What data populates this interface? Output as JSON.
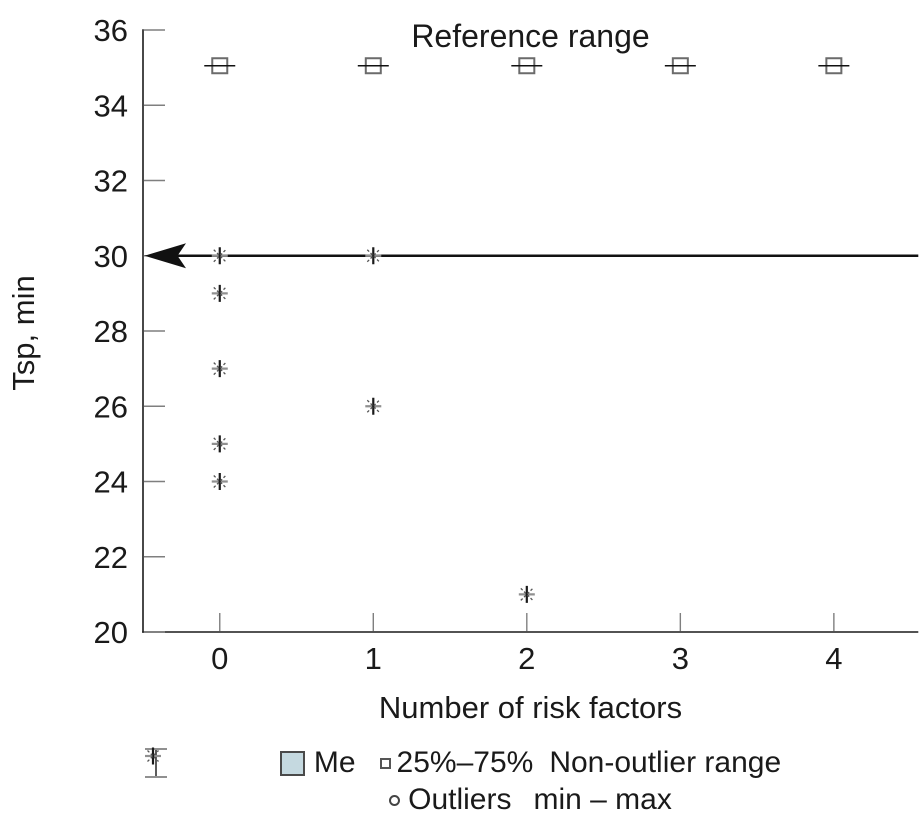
{
  "chart_data": {
    "type": "scatter",
    "title": "",
    "annotation": "Reference range",
    "xlabel": "Number of risk factors",
    "ylabel": "Tsp, min",
    "xlim": [
      -0.5,
      4.55
    ],
    "ylim": [
      20,
      36
    ],
    "x_ticks": [
      0,
      1,
      2,
      3,
      4
    ],
    "y_ticks": [
      20,
      22,
      24,
      26,
      28,
      30,
      32,
      34,
      36
    ],
    "grid": false,
    "legend_position": "bottom",
    "reference_arrow": {
      "y": 30,
      "direction": "left"
    },
    "series": [
      {
        "name": "25%–75%",
        "marker": "box-with-line",
        "points": [
          [
            0,
            35.05
          ],
          [
            1,
            35.05
          ],
          [
            2,
            35.05
          ],
          [
            3,
            35.05
          ],
          [
            4,
            35.05
          ]
        ]
      },
      {
        "name": "min – max",
        "marker": "asterisk",
        "points": [
          [
            0,
            30
          ],
          [
            0,
            29
          ],
          [
            0,
            27
          ],
          [
            0,
            25
          ],
          [
            0,
            24
          ],
          [
            1,
            30
          ],
          [
            1,
            26
          ],
          [
            2,
            21
          ]
        ]
      }
    ]
  },
  "legend": {
    "me": {
      "label": "Me",
      "fill": "#c5d9e0"
    },
    "box": {
      "label": "25%–75%"
    },
    "non_outlier": {
      "label": "Non-outlier range"
    },
    "outliers": {
      "label": "Outliers"
    },
    "min_max": {
      "label": "min – max"
    }
  },
  "colors": {
    "text": "#1a1a1a",
    "axis": "#1a1a1a",
    "tick": "#7f7f7f",
    "arrow": "#111111",
    "box_marker_stroke": "#6b6b6b",
    "box_marker_line": "#111111",
    "asterisk_vertical": "#1a1a1a",
    "asterisk_horizontal": "#909090",
    "asterisk_diagonal": "#555555",
    "background": "#ffffff"
  }
}
